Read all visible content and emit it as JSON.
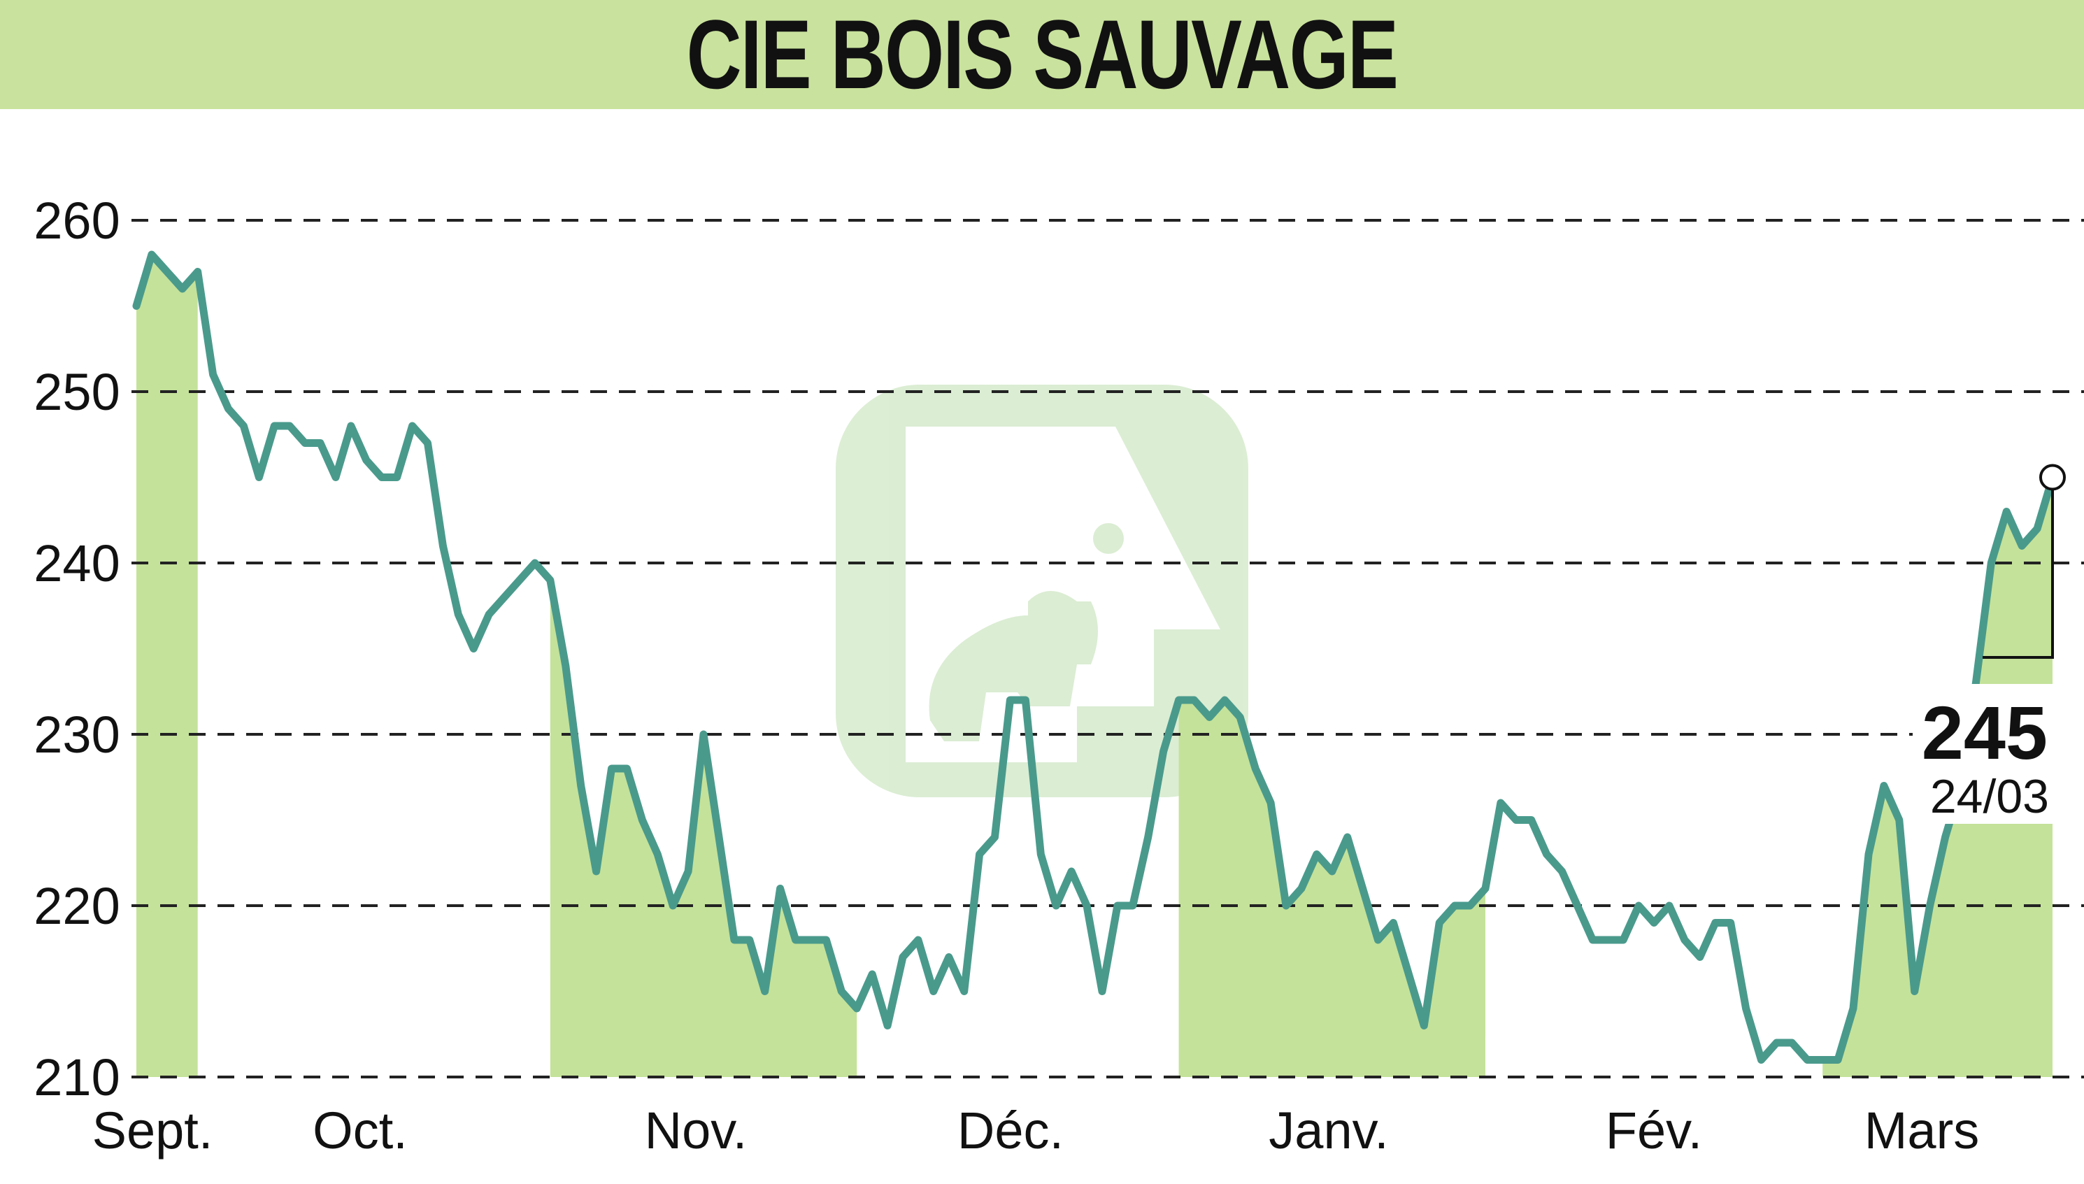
{
  "header": {
    "title": "CIE BOIS SAUVAGE"
  },
  "colors": {
    "title_bg": "#c9e29d",
    "line": "#4a9a8c",
    "fill": "#c4e29a",
    "grid": "#222222",
    "watermark": "#bfe0b0"
  },
  "chart_data": {
    "type": "line",
    "title": "CIE BOIS SAUVAGE",
    "xlabel": "",
    "ylabel": "",
    "ylim": [
      210,
      260
    ],
    "yticks": [
      210,
      220,
      230,
      240,
      250,
      260
    ],
    "month_labels": [
      "Sept.",
      "Oct.",
      "Nov.",
      "Déc.",
      "Janv.",
      "Fév.",
      "Mars"
    ],
    "grid": "horizontal dashed",
    "series": [
      {
        "values": [
          255,
          258,
          257,
          256,
          257,
          251,
          249,
          248,
          245,
          248,
          248,
          247,
          247,
          245,
          248,
          246,
          245,
          245,
          248,
          247,
          241,
          237,
          235,
          237,
          238,
          239,
          240,
          239,
          234,
          227,
          222,
          228,
          228,
          225,
          223,
          220,
          222,
          230,
          224,
          218,
          218,
          215,
          221,
          218,
          218,
          218,
          215,
          214,
          216,
          213,
          217,
          218,
          215,
          217,
          215,
          223,
          224,
          232,
          232,
          223,
          220,
          222,
          220,
          215,
          220,
          220,
          224,
          229,
          232,
          232,
          231,
          232,
          231,
          228,
          226,
          220,
          221,
          223,
          222,
          224,
          221,
          218,
          219,
          216,
          213,
          219,
          220,
          220,
          221,
          226,
          225,
          225,
          223,
          222,
          220,
          218,
          218,
          218,
          220,
          219,
          220,
          218,
          217,
          219,
          219,
          214,
          211,
          212,
          212,
          211,
          211,
          211,
          214,
          223,
          227,
          225,
          215,
          220,
          224,
          227,
          233,
          240,
          243,
          241,
          242,
          245
        ]
      }
    ],
    "last_value": "245",
    "last_date": "24/03"
  }
}
